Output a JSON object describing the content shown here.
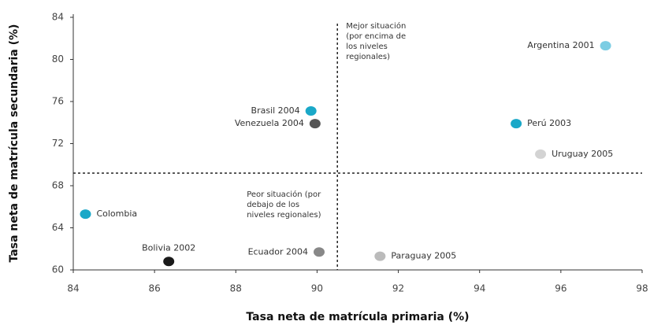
{
  "chart_data": {
    "type": "scatter",
    "x_label": "Tasa neta de matrícula primaria (%)",
    "y_label": "Tasa neta de matrícula secundaria (%)",
    "xlim": [
      84,
      98
    ],
    "xticks": [
      84,
      86,
      88,
      90,
      92,
      94,
      96,
      98
    ],
    "ylim": [
      60,
      84
    ],
    "yticks": [
      60,
      64,
      68,
      72,
      76,
      80,
      84
    ],
    "reference_lines": {
      "x": 90.5,
      "y": 69.2
    },
    "annotations": [
      {
        "lines": [
          "Mejor situación",
          "(por encima de",
          "los niveles",
          "regionales)"
        ]
      },
      {
        "lines": [
          "Peor situación (por",
          "debajo de los",
          "niveles regionales)"
        ]
      }
    ],
    "points": [
      {
        "label": "Argentina 2001",
        "x": 97.1,
        "y": 81.3,
        "color": "#7ccde3"
      },
      {
        "label": "Perú 2003",
        "x": 94.9,
        "y": 73.9,
        "color": "#1aa8c8"
      },
      {
        "label": "Uruguay 2005",
        "x": 95.5,
        "y": 71.0,
        "color": "#d3d3d3"
      },
      {
        "label": "Brasil 2004",
        "x": 89.85,
        "y": 75.1,
        "color": "#1aa8c8"
      },
      {
        "label": "Venezuela 2004",
        "x": 89.95,
        "y": 73.9,
        "color": "#555555"
      },
      {
        "label": "Colombia",
        "x": 84.3,
        "y": 65.3,
        "color": "#1aa8c8"
      },
      {
        "label": "Bolivia 2002",
        "x": 86.35,
        "y": 60.8,
        "color": "#1a1a1a"
      },
      {
        "label": "Ecuador 2004",
        "x": 90.05,
        "y": 61.7,
        "color": "#888888"
      },
      {
        "label": "Paraguay 2005",
        "x": 91.55,
        "y": 61.3,
        "color": "#bbbbbb"
      }
    ]
  }
}
